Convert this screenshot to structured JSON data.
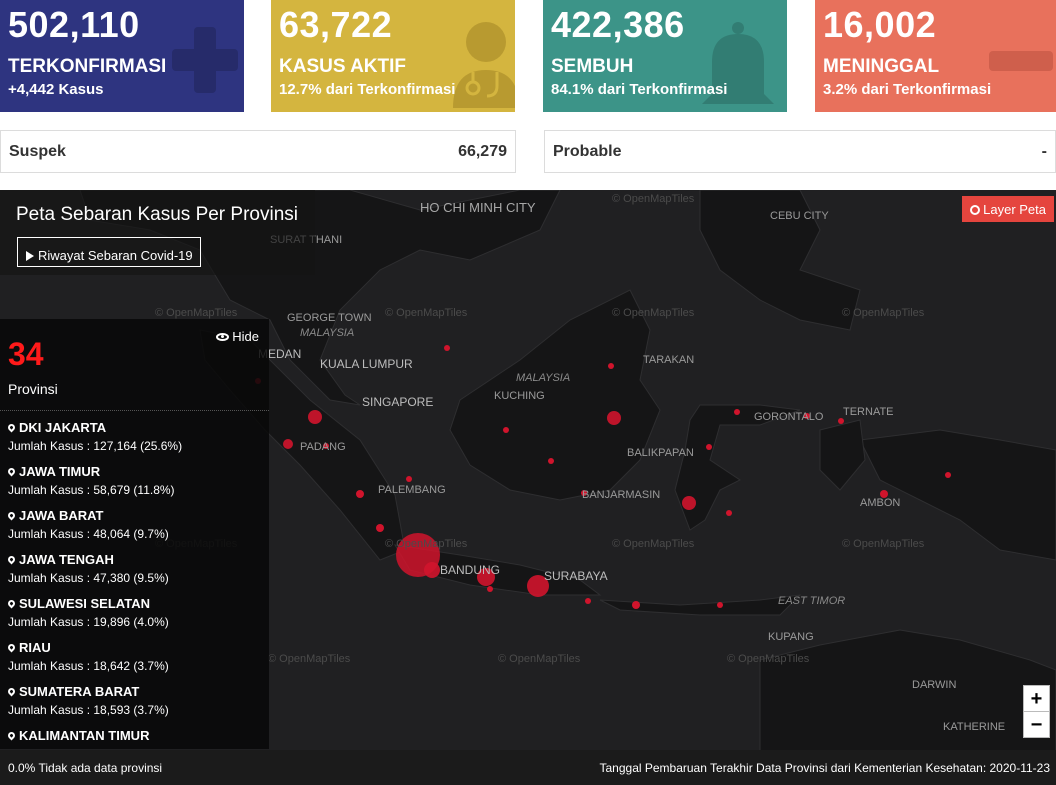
{
  "colors": {
    "confirmed": "#2e3480",
    "active": "#d4b53f",
    "recovered": "#3c9488",
    "deaths": "#e8715c",
    "bubble": "#d0142c"
  },
  "cards": [
    {
      "number": "502,110",
      "label": "TERKONFIRMASI",
      "sub": "+4,442 Kasus",
      "icon": "plus-icon"
    },
    {
      "number": "63,722",
      "label": "KASUS AKTIF",
      "sub": "12.7% dari Terkonfirmasi",
      "icon": "doctor-icon"
    },
    {
      "number": "422,386",
      "label": "SEMBUH",
      "sub": "84.1% dari Terkonfirmasi",
      "icon": "bell-icon"
    },
    {
      "number": "16,002",
      "label": "MENINGGAL",
      "sub": "3.2% dari Terkonfirmasi",
      "icon": "minus-icon"
    }
  ],
  "suspek": {
    "label": "Suspek",
    "value": "66,279"
  },
  "probable": {
    "label": "Probable",
    "value": "-"
  },
  "map": {
    "title": "Peta Sebaran Kasus Per Provinsi",
    "history_button": "Riwayat Sebaran Covid-19",
    "layer_button": "Layer Peta",
    "hide_label": "Hide",
    "province_count": "34",
    "province_label": "Provinsi",
    "provinces": [
      {
        "name": "DKI JAKARTA",
        "cases": "Jumlah Kasus : 127,164 (25.6%)"
      },
      {
        "name": "JAWA TIMUR",
        "cases": "Jumlah Kasus : 58,679 (11.8%)"
      },
      {
        "name": "JAWA BARAT",
        "cases": "Jumlah Kasus : 48,064 (9.7%)"
      },
      {
        "name": "JAWA TENGAH",
        "cases": "Jumlah Kasus : 47,380 (9.5%)"
      },
      {
        "name": "SULAWESI SELATAN",
        "cases": "Jumlah Kasus : 19,896 (4.0%)"
      },
      {
        "name": "RIAU",
        "cases": "Jumlah Kasus : 18,642 (3.7%)"
      },
      {
        "name": "SUMATERA BARAT",
        "cases": "Jumlah Kasus : 18,593 (3.7%)"
      },
      {
        "name": "KALIMANTAN TIMUR",
        "cases": ""
      }
    ],
    "labels": {
      "hcm": "HO CHI MINH CITY",
      "cebu": "CEBU CITY",
      "surat": "SURAT THANI",
      "george": "GEORGE TOWN",
      "malaysia_w": "MALAYSIA",
      "medan": "MEDAN",
      "kl": "KUALA LUMPUR",
      "singapore": "SINGAPORE",
      "malaysia_e": "MALAYSIA",
      "kuching": "KUCHING",
      "tarakan": "TARAKAN",
      "gorontalo": "GORONTALO",
      "ternate": "TERNATE",
      "padang": "PADANG",
      "balikpapan": "BALIKPAPAN",
      "palembang": "PALEMBANG",
      "banjarmasin": "BANJARMASIN",
      "ambon": "AMBON",
      "bandung": "BANDUNG",
      "surabaya": "SURABAYA",
      "east_timor": "EAST TIMOR",
      "kupang": "KUPANG",
      "darwin": "DARWIN",
      "katherine": "KATHERINE",
      "omt": "© OpenMapTiles"
    },
    "zoom_in": "+",
    "zoom_out": "−"
  },
  "footer": {
    "left": "0.0% Tidak ada data provinsi",
    "right": "Tanggal Pembaruan Terakhir Data Provinsi dari Kementerian Kesehatan: 2020-11-23"
  }
}
